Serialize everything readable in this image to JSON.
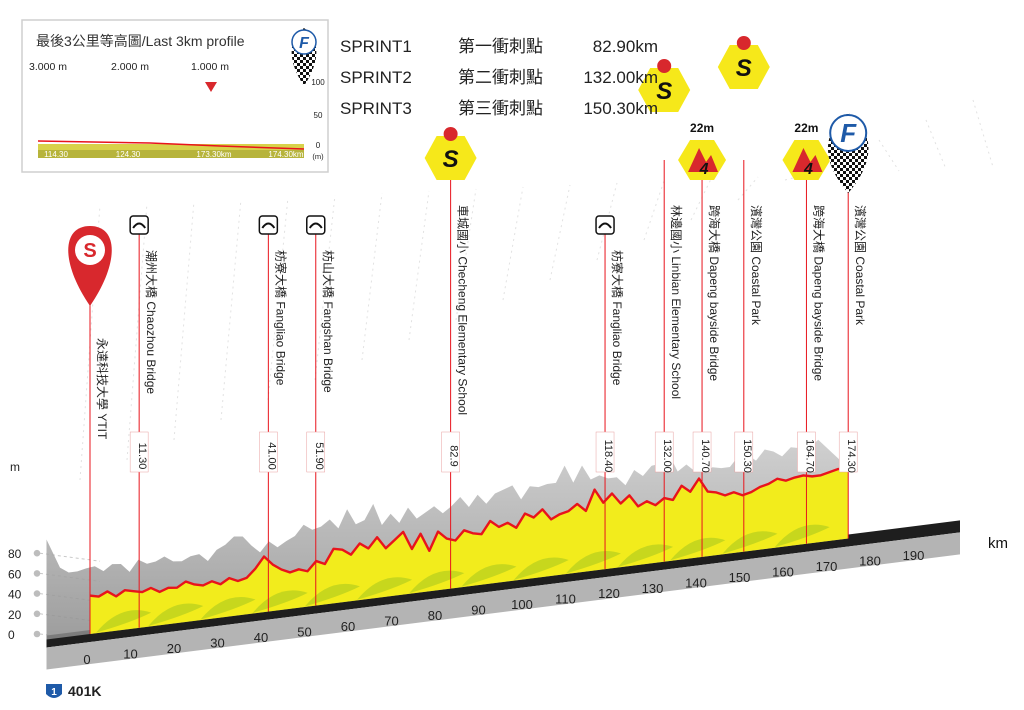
{
  "chart_data": {
    "type": "area",
    "title": "",
    "xlabel": "km",
    "ylabel": "m",
    "xlim": [
      0,
      195
    ],
    "ylim": [
      0,
      100
    ],
    "x_ticks": [
      0,
      10,
      20,
      30,
      40,
      50,
      60,
      70,
      80,
      90,
      100,
      110,
      120,
      130,
      140,
      150,
      160,
      170,
      180,
      190
    ],
    "y_ticks": [
      0,
      20,
      40,
      60,
      80
    ],
    "road_label": "401K",
    "road_shield": "1",
    "series": [
      {
        "x": [
          0,
          2,
          4,
          6,
          8,
          10,
          12,
          14,
          16,
          18,
          20,
          22,
          24,
          26,
          28,
          30,
          32,
          34,
          36,
          38,
          40,
          42,
          44,
          46,
          48,
          50,
          52,
          54,
          56,
          58,
          60,
          62,
          64,
          66,
          68,
          70,
          72,
          74,
          76,
          78,
          80,
          82,
          84,
          86,
          88,
          90,
          92,
          94,
          96,
          98,
          100,
          102,
          104,
          106,
          108,
          110,
          112,
          114,
          116,
          118,
          120,
          122,
          124,
          126,
          128,
          130,
          132,
          134,
          136,
          138,
          140,
          142,
          144,
          146,
          148,
          150,
          152,
          154,
          156,
          158,
          160,
          162,
          164,
          166,
          168,
          170,
          172,
          174.3
        ],
        "y": [
          38,
          36,
          40,
          34,
          39,
          37,
          35,
          38,
          33,
          36,
          35,
          40,
          36,
          34,
          37,
          33,
          38,
          34,
          36,
          44,
          55,
          46,
          40,
          36,
          38,
          35,
          44,
          40,
          54,
          52,
          46,
          56,
          50,
          60,
          48,
          55,
          62,
          44,
          58,
          40,
          58,
          50,
          47,
          56,
          52,
          50,
          62,
          55,
          58,
          52,
          65,
          60,
          67,
          56,
          60,
          62,
          68,
          60,
          80,
          66,
          74,
          63,
          70,
          58,
          62,
          57,
          63,
          60,
          73,
          66,
          78,
          64,
          62,
          58,
          60,
          56,
          58,
          62,
          64,
          68,
          65,
          67,
          68,
          66,
          66,
          68,
          70,
          70
        ]
      }
    ],
    "waypoints": [
      {
        "km_label": "",
        "label": "永達科技大學 YTIT",
        "km": 0,
        "icon": "start-icon"
      },
      {
        "km_label": "11.30",
        "label": "潮州大橋 Chaozhou Bridge",
        "km": 11.3,
        "icon": "bridge-icon"
      },
      {
        "km_label": "41.00",
        "label": "枋寮大橋 Fangliao Bridge",
        "km": 41.0,
        "icon": "bridge-icon"
      },
      {
        "km_label": "51.90",
        "label": "枋山大橋 Fangshan Bridge",
        "km": 51.9,
        "icon": "bridge-icon"
      },
      {
        "km_label": "82.9",
        "label": "車城國小 Checheng Elementary School",
        "km": 82.9,
        "icon": "sprint-icon"
      },
      {
        "km_label": "118.40",
        "label": "枋寮大橋 Fangliao Bridge",
        "km": 118.4,
        "icon": "bridge-icon"
      },
      {
        "km_label": "132.00",
        "label": "林邊國小 Linbian Elementary School",
        "km": 132.0,
        "icon": "sprint-icon"
      },
      {
        "km_label": "140.70",
        "label": "跨海大橋 Dapeng bayside Bridge",
        "km": 140.7,
        "icon": "kom-icon",
        "kom_height": "22m"
      },
      {
        "km_label": "150.30",
        "label": "濱灣公園 Coastal Park",
        "km": 150.3,
        "icon": "sprint-icon"
      },
      {
        "km_label": "164.70",
        "label": "跨海大橋 Dapeng bayside Bridge",
        "km": 164.7,
        "icon": "kom-icon",
        "kom_height": "22m"
      },
      {
        "km_label": "174.30",
        "label": "濱灣公園 Coastal Park",
        "km": 174.3,
        "icon": "finish-icon"
      }
    ],
    "sprints": [
      {
        "name": "SPRINT1",
        "name_zh": "第一衝刺點",
        "km": "82.90km"
      },
      {
        "name": "SPRINT2",
        "name_zh": "第二衝刺點",
        "km": "132.00km"
      },
      {
        "name": "SPRINT3",
        "name_zh": "第三衝刺點",
        "km": "150.30km"
      }
    ],
    "inset": {
      "title": "最後3公里等高圖/Last 3km profile",
      "top_labels": [
        "3.000 m",
        "2.000 m",
        "1.000 m"
      ],
      "bottom_labels": [
        "114.30",
        "124.30",
        "173.30km",
        "174.30km"
      ],
      "y_ticks": [
        "100",
        "50",
        "0"
      ],
      "y_unit": "(m)"
    }
  },
  "colors": {
    "profile_line": "#e8141c",
    "terrain_yellow": "#f2ec1c",
    "terrain_green": "#bcd21e",
    "relief_gray": "#9b9b9b",
    "base_dark": "#1e1e1e",
    "base_gray": "#b4b4b4",
    "marker_red": "#d8282d",
    "sprint_yellow": "#f6e81a",
    "finish_blue": "#1e5aa8"
  }
}
